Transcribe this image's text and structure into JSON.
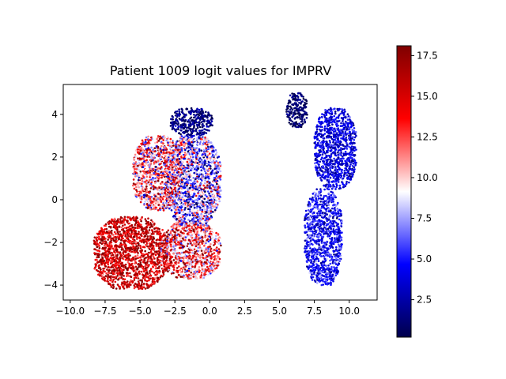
{
  "chart_data": {
    "type": "scatter",
    "title": "Patient 1009 logit values for IMPRV",
    "xlabel": "",
    "ylabel": "",
    "xlim": [
      -10.5,
      12
    ],
    "ylim": [
      -4.7,
      5.4
    ],
    "x_ticks": [
      -10.0,
      -7.5,
      -5.0,
      -2.5,
      0.0,
      2.5,
      5.0,
      7.5,
      10.0
    ],
    "x_tick_labels": [
      "−10.0",
      "−7.5",
      "−5.0",
      "−2.5",
      "0.0",
      "2.5",
      "5.0",
      "7.5",
      "10.0"
    ],
    "y_ticks": [
      -4,
      -2,
      0,
      2,
      4
    ],
    "y_tick_labels": [
      "−4",
      "−2",
      "0",
      "2",
      "4"
    ],
    "grid": false,
    "colormap": "seismic",
    "colorbar": {
      "range": [
        0.2,
        18.1
      ],
      "ticks": [
        2.5,
        5.0,
        7.5,
        10.0,
        12.5,
        15.0,
        17.5
      ],
      "tick_labels": [
        "2.5",
        "5.0",
        "7.5",
        "10.0",
        "12.5",
        "15.0",
        "17.5"
      ]
    },
    "clusters": [
      {
        "x": [
          -8.3,
          -3.0
        ],
        "y": [
          -4.2,
          -0.8
        ],
        "value": 15.5,
        "spread": 2.0
      },
      {
        "x": [
          -3.5,
          0.8
        ],
        "y": [
          -3.7,
          -1.0
        ],
        "value": 12.0,
        "spread": 3.5
      },
      {
        "x": [
          -3.2,
          0.8
        ],
        "y": [
          -1.2,
          3.0
        ],
        "value": 7.0,
        "spread": 4.0
      },
      {
        "x": [
          -5.5,
          -2.0
        ],
        "y": [
          -0.5,
          3.0
        ],
        "value": 11.5,
        "spread": 4.0
      },
      {
        "x": [
          -2.8,
          0.2
        ],
        "y": [
          3.0,
          4.3
        ],
        "value": 1.5,
        "spread": 1.0
      },
      {
        "x": [
          7.5,
          10.5
        ],
        "y": [
          0.5,
          4.3
        ],
        "value": 3.8,
        "spread": 1.2
      },
      {
        "x": [
          6.8,
          9.5
        ],
        "y": [
          -4.0,
          0.5
        ],
        "value": 4.5,
        "spread": 1.5
      },
      {
        "x": [
          5.5,
          7.0
        ],
        "y": [
          3.4,
          5.0
        ],
        "value": 1.0,
        "spread": 0.8
      }
    ]
  }
}
